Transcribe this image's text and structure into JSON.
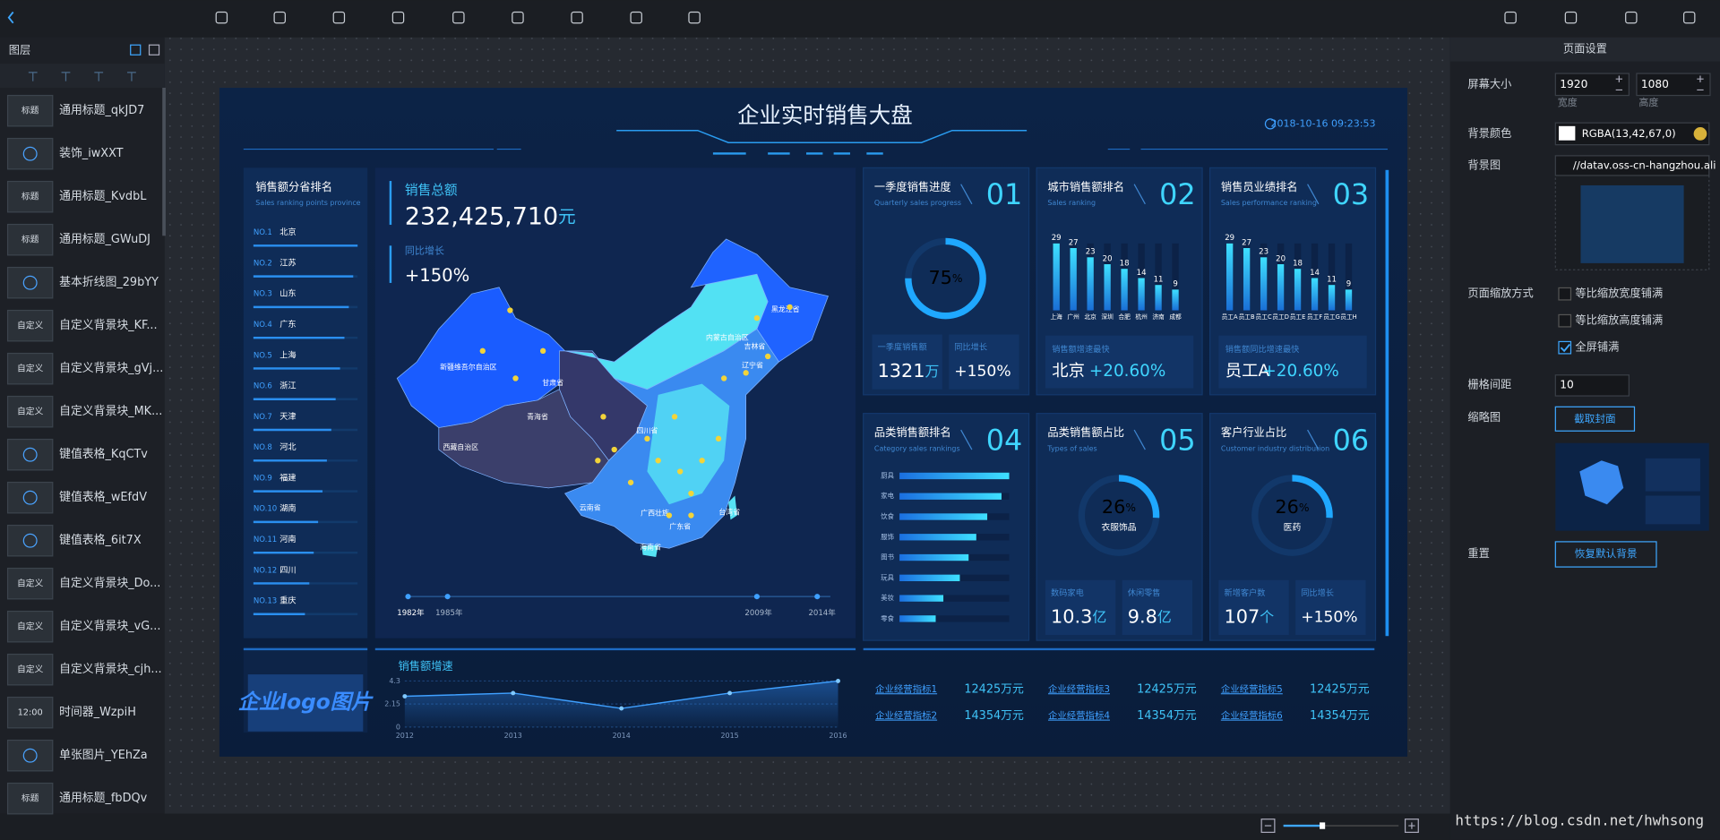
{
  "layers": {
    "title": "图层",
    "items": [
      {
        "thumb": "标题",
        "name": "通用标题_qkJD7"
      },
      {
        "name": "装饰_iwXXT"
      },
      {
        "thumb": "标题",
        "name": "通用标题_KvdbL"
      },
      {
        "thumb": "标题",
        "name": "通用标题_GWuDJ"
      },
      {
        "name": "基本折线图_29bYY"
      },
      {
        "thumb": "自定义",
        "name": "自定义背景块_KF..."
      },
      {
        "thumb": "自定义",
        "name": "自定义背景块_gVj..."
      },
      {
        "thumb": "自定义",
        "name": "自定义背景块_MK..."
      },
      {
        "name": "键值表格_KqCTv"
      },
      {
        "name": "键值表格_wEfdV"
      },
      {
        "name": "键值表格_6it7X"
      },
      {
        "thumb": "自定义",
        "name": "自定义背景块_Do..."
      },
      {
        "thumb": "自定义",
        "name": "自定义背景块_vG..."
      },
      {
        "thumb": "自定义",
        "name": "自定义背景块_cjh..."
      },
      {
        "thumb": "12:00",
        "name": "时间器_WzpiH"
      },
      {
        "name": "单张图片_YEhZa"
      },
      {
        "thumb": "标题",
        "name": "通用标题_fbDQv"
      }
    ]
  },
  "dashboard": {
    "title": "企业实时销售大盘",
    "datetime": "2018-10-16 09:23:53",
    "province_rank": {
      "title": "销售额分省排名",
      "subtitle": "Sales ranking points province",
      "items": [
        {
          "rank": "NO.1",
          "name": "北京"
        },
        {
          "rank": "NO.2",
          "name": "江苏"
        },
        {
          "rank": "NO.3",
          "name": "山东"
        },
        {
          "rank": "NO.4",
          "name": "广东"
        },
        {
          "rank": "NO.5",
          "name": "上海"
        },
        {
          "rank": "NO.6",
          "name": "浙江"
        },
        {
          "rank": "NO.7",
          "name": "天津"
        },
        {
          "rank": "NO.8",
          "name": "河北"
        },
        {
          "rank": "NO.9",
          "name": "福建"
        },
        {
          "rank": "NO.10",
          "name": "湖南"
        },
        {
          "rank": "NO.11",
          "name": "河南"
        },
        {
          "rank": "NO.12",
          "name": "四川"
        },
        {
          "rank": "NO.13",
          "name": "重庆"
        }
      ]
    },
    "sales": {
      "label": "销售总额",
      "total": "232,425,710",
      "unit": "元",
      "growth_label": "同比增长",
      "growth": "+150%"
    },
    "map": {
      "labels": [
        "新疆维吾尔自治区",
        "西藏自治区",
        "青海省",
        "甘肃省",
        "内蒙古自治区",
        "黑龙江省",
        "吉林省",
        "辽宁省",
        "四川省",
        "云南省",
        "广西壮族",
        "广东省",
        "海南省",
        "台湾省"
      ],
      "timeline": [
        "1982年",
        "1985年",
        "2009年",
        "2014年"
      ]
    },
    "panels": [
      {
        "title": "一季度销售进度",
        "subtitle": "Quarterly sales progress",
        "number": "01",
        "gauge": {
          "value": 75,
          "unit": "%"
        },
        "stats": [
          {
            "label": "一季度销售额",
            "value": 1321,
            "unit": "万"
          },
          {
            "label": "同比增长",
            "value": "+150%"
          }
        ]
      },
      {
        "title": "城市销售额排名",
        "subtitle": "Sales ranking",
        "number": "02",
        "bars": {
          "type": "bar",
          "categories": [
            "上海",
            "广州",
            "北京",
            "深圳",
            "合肥",
            "杭州",
            "济南",
            "成都"
          ],
          "values": [
            29,
            27,
            23,
            20,
            18,
            14,
            11,
            9
          ]
        },
        "highlight": {
          "label": "销售额增速最快",
          "name": "北京",
          "value": "+20.60%"
        }
      },
      {
        "title": "销售员业绩排名",
        "subtitle": "Sales performance ranking",
        "number": "03",
        "bars": {
          "type": "bar",
          "categories": [
            "员工A",
            "员工B",
            "员工C",
            "员工D",
            "员工E",
            "员工F",
            "员工G",
            "员工H"
          ],
          "values": [
            29,
            27,
            23,
            20,
            18,
            14,
            11,
            9
          ]
        },
        "highlight": {
          "label": "销售额同比增速最快",
          "name": "员工A",
          "value": "+20.60%"
        }
      },
      {
        "title": "品类销售额排名",
        "subtitle": "Category sales rankings",
        "number": "04",
        "hbars": {
          "type": "bar",
          "categories": [
            "厨具",
            "家电",
            "饮食",
            "服饰",
            "图书",
            "玩具",
            "美妆",
            "零食"
          ],
          "values": [
            100,
            93,
            80,
            70,
            63,
            55,
            40,
            33
          ]
        }
      },
      {
        "title": "品类销售额占比",
        "subtitle": "Types of sales",
        "number": "05",
        "gauge": {
          "value": 26,
          "unit": "%",
          "label": "衣服饰品"
        },
        "stats": [
          {
            "label": "数码家电",
            "value": 10.3,
            "unit": "亿"
          },
          {
            "label": "休闲零售",
            "value": 9.8,
            "unit": "亿"
          }
        ]
      },
      {
        "title": "客户行业占比",
        "subtitle": "Customer industry distribution",
        "number": "06",
        "gauge": {
          "value": 26,
          "unit": "%",
          "label": "医药"
        },
        "stats": [
          {
            "label": "新增客户数",
            "value": 107,
            "unit": "个"
          },
          {
            "label": "同比增长",
            "value": "+150%"
          }
        ]
      }
    ],
    "logo": "企业logo图片",
    "trend": {
      "type": "line",
      "title": "销售额增速",
      "x": [
        2012,
        2013,
        2014,
        2015,
        2016
      ],
      "values": [
        2.87,
        3.17,
        1.74,
        3.17,
        4.3
      ],
      "xlim": [
        2012,
        2016
      ],
      "ylim": [
        0,
        4.3
      ],
      "yticks": [
        0,
        2.15,
        4.3
      ]
    },
    "kpis": [
      {
        "name": "企业经营指标1",
        "value": "12425万元"
      },
      {
        "name": "企业经营指标2",
        "value": "14354万元"
      },
      {
        "name": "企业经营指标3",
        "value": "12425万元"
      },
      {
        "name": "企业经营指标4",
        "value": "14354万元"
      },
      {
        "name": "企业经营指标5",
        "value": "12425万元"
      },
      {
        "name": "企业经营指标6",
        "value": "14354万元"
      }
    ]
  },
  "settings": {
    "title": "页面设置",
    "screen_label": "屏幕大小",
    "width": 1920,
    "height": 1080,
    "width_label": "宽度",
    "height_label": "高度",
    "bg_color_label": "背景颜色",
    "bg_color": "RGBA(13,42,67,0)",
    "bg_image_label": "背景图",
    "bg_image": "//datav.oss-cn-hangzhou.ali",
    "scale_label": "页面缩放方式",
    "scale_options": [
      {
        "label": "等比缩放宽度铺满",
        "checked": false
      },
      {
        "label": "等比缩放高度铺满",
        "checked": false
      },
      {
        "label": "全屏铺满",
        "checked": true
      }
    ],
    "grid_label": "栅格间距",
    "grid": 10,
    "thumbnail_label": "缩略图",
    "capture": "截取封面",
    "reset_label": "重置",
    "reset": "恢复默认背景"
  },
  "watermark": "https://blog.csdn.net/hwhsong"
}
